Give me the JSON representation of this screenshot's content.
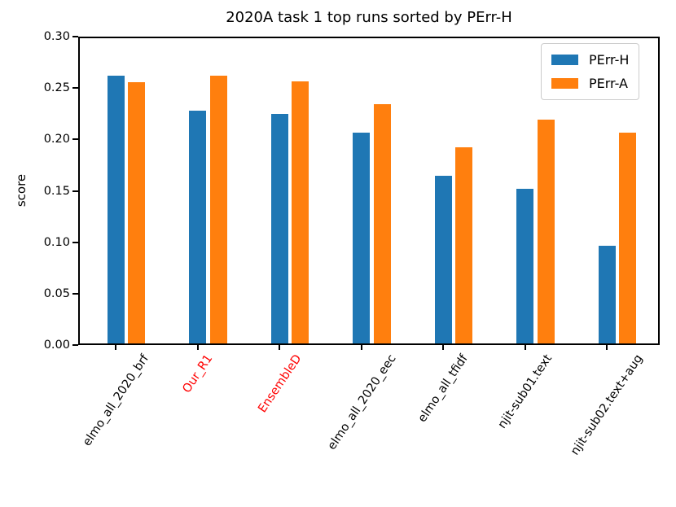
{
  "figure": {
    "title": "2020A task 1 top runs sorted by PErr-H"
  },
  "legend": {
    "position": "upper right",
    "items": [
      {
        "label": "PErr-H",
        "color": "#1f77b4"
      },
      {
        "label": "PErr-A",
        "color": "#ff7f0e"
      }
    ]
  },
  "colors": {
    "bar_blue": "#1f77b4",
    "bar_orange": "#ff7f0e",
    "axis": "#000000",
    "highlight_tick_label": "#ff0000",
    "normal_tick_label": "#000000",
    "legend_border": "#cccccc",
    "background": "#ffffff"
  },
  "chart_data": {
    "type": "bar",
    "title": "2020A task 1 top runs sorted by PErr-H",
    "xlabel": "",
    "ylabel": "score",
    "ylim": [
      0,
      0.3
    ],
    "yticks": [
      "0.00",
      "0.05",
      "0.10",
      "0.15",
      "0.20",
      "0.25",
      "0.30"
    ],
    "ytick_values": [
      0,
      0.05,
      0.1,
      0.15,
      0.2,
      0.25,
      0.3
    ],
    "grid": false,
    "legend_position": "upper right",
    "tick_label_rotation": 56,
    "categories": [
      "elmo_all_2020_brf",
      "Our_R1",
      "EnsembleD",
      "elmo_all_2020_eec",
      "elmo_all_tfidf",
      "njit-sub01.text",
      "njit-sub02.text+aug"
    ],
    "category_colors": [
      "#000000",
      "#ff0000",
      "#ff0000",
      "#000000",
      "#000000",
      "#000000",
      "#000000"
    ],
    "series": [
      {
        "name": "PErr-H",
        "color": "#1f77b4",
        "values": [
          0.263,
          0.229,
          0.226,
          0.207,
          0.165,
          0.152,
          0.096
        ]
      },
      {
        "name": "PErr-A",
        "color": "#ff7f0e",
        "values": [
          0.257,
          0.263,
          0.258,
          0.235,
          0.193,
          0.22,
          0.207
        ]
      }
    ]
  }
}
